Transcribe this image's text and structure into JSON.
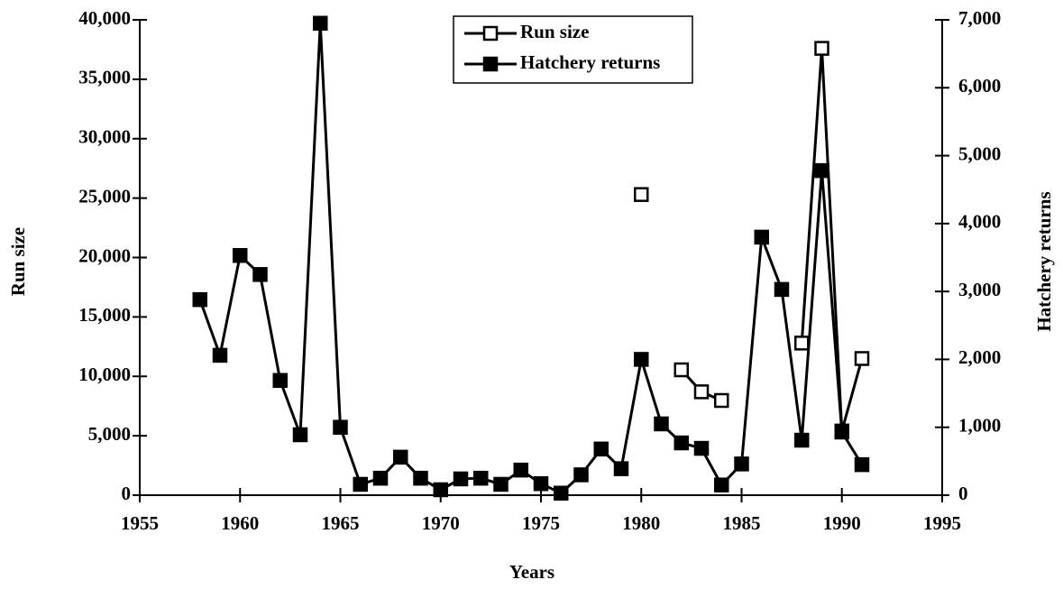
{
  "chart_data": {
    "type": "line",
    "xlabel": "Years",
    "ylabel": "Run size",
    "y2label": "Hatchery returns",
    "x": [
      1958,
      1959,
      1960,
      1961,
      1962,
      1963,
      1964,
      1965,
      1966,
      1967,
      1968,
      1969,
      1970,
      1971,
      1972,
      1973,
      1974,
      1975,
      1976,
      1977,
      1978,
      1979,
      1980,
      1981,
      1982,
      1983,
      1984,
      1985,
      1986,
      1987,
      1988,
      1989,
      1990,
      1991
    ],
    "series": [
      {
        "name": "Run size",
        "color": "#000000",
        "marker": "open-square",
        "values": [
          null,
          null,
          null,
          null,
          null,
          null,
          null,
          null,
          null,
          null,
          null,
          null,
          null,
          null,
          null,
          null,
          null,
          null,
          null,
          null,
          null,
          null,
          25300,
          null,
          10550,
          8700,
          7970,
          null,
          null,
          null,
          12800,
          37600,
          5400,
          11500
        ]
      },
      {
        "name": "Hatchery returns",
        "color": "#000000",
        "marker": "filled-square",
        "axis": "y2",
        "values": [
          2880,
          2060,
          3530,
          3250,
          1690,
          890,
          6950,
          1000,
          160,
          250,
          560,
          250,
          80,
          240,
          250,
          160,
          370,
          170,
          30,
          300,
          680,
          390,
          2000,
          1050,
          770,
          690,
          150,
          460,
          3800,
          3030,
          810,
          4780,
          930,
          450
        ]
      }
    ],
    "xlim": [
      1955,
      1995
    ],
    "xticks": [
      1955,
      1960,
      1965,
      1970,
      1975,
      1980,
      1985,
      1990,
      1995
    ],
    "ylim": [
      0,
      40000
    ],
    "yticks": [
      0,
      {
        "value": 5000,
        "label": "5,000"
      },
      {
        "value": 10000,
        "label": "10,000"
      },
      {
        "value": 15000,
        "label": "15,000"
      },
      {
        "value": 20000,
        "label": "20,000"
      },
      {
        "value": 25000,
        "label": "25,000"
      },
      {
        "value": 30000,
        "label": "30,000"
      },
      {
        "value": 35000,
        "label": "35,000"
      },
      {
        "value": 40000,
        "label": "40,000"
      }
    ],
    "y2lim": [
      0,
      7000
    ],
    "y2ticks": [
      0,
      {
        "value": 1000,
        "label": "1,000"
      },
      {
        "value": 2000,
        "label": "2,000"
      },
      {
        "value": 3000,
        "label": "3,000"
      },
      {
        "value": 4000,
        "label": "4,000"
      },
      {
        "value": 5000,
        "label": "5,000"
      },
      {
        "value": 6000,
        "label": "6,000"
      },
      {
        "value": 7000,
        "label": "7,000"
      }
    ],
    "legend": "top-center"
  }
}
